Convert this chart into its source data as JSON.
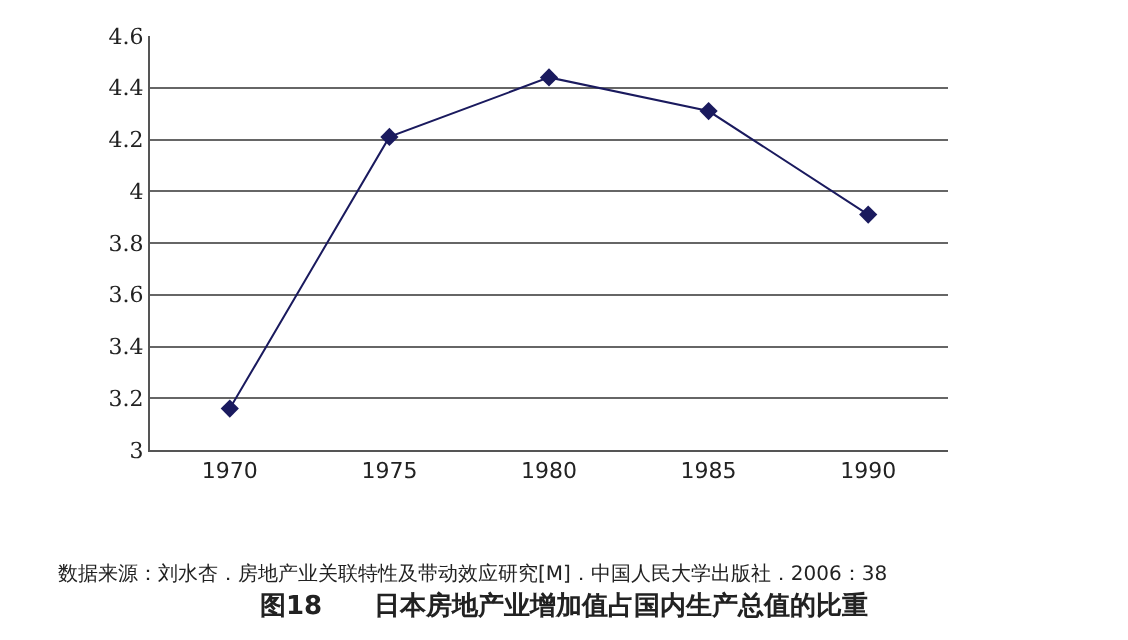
{
  "chart_data": {
    "type": "line",
    "title": "图18　　日本房地产业增加值占国内生产总值的比重",
    "categories": [
      "1970",
      "1975",
      "1980",
      "1985",
      "1990"
    ],
    "series": [
      {
        "color": "#1a1a5e",
        "values": [
          3.16,
          4.21,
          4.44,
          4.31,
          3.91
        ]
      }
    ],
    "ylim": [
      3,
      4.6
    ],
    "yticks": [
      3,
      3.2,
      3.4,
      3.6,
      3.8,
      4,
      4.2,
      4.4,
      4.6
    ],
    "grid": "y",
    "marker": "diamond",
    "line_style": "solid",
    "annotations": [
      "数据来源：刘水杏．房地产业关联特性及带动效应研究[M]．中国人民大学出版社．2006：38"
    ]
  }
}
